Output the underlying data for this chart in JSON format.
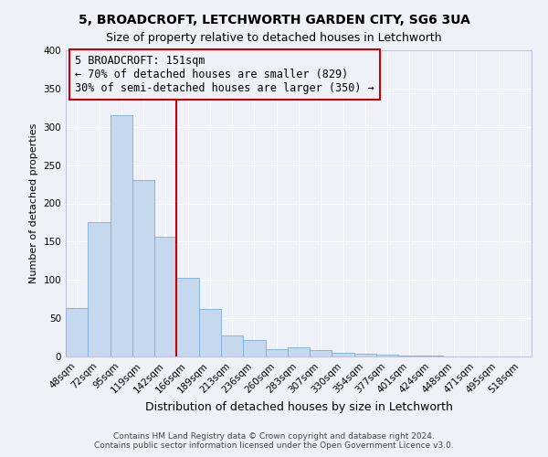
{
  "title": "5, BROADCROFT, LETCHWORTH GARDEN CITY, SG6 3UA",
  "subtitle": "Size of property relative to detached houses in Letchworth",
  "xlabel": "Distribution of detached houses by size in Letchworth",
  "ylabel": "Number of detached properties",
  "footer_line1": "Contains HM Land Registry data © Crown copyright and database right 2024.",
  "footer_line2": "Contains public sector information licensed under the Open Government Licence v3.0.",
  "bin_labels": [
    "48sqm",
    "72sqm",
    "95sqm",
    "119sqm",
    "142sqm",
    "166sqm",
    "189sqm",
    "213sqm",
    "236sqm",
    "260sqm",
    "283sqm",
    "307sqm",
    "330sqm",
    "354sqm",
    "377sqm",
    "401sqm",
    "424sqm",
    "448sqm",
    "471sqm",
    "495sqm",
    "518sqm"
  ],
  "bar_heights": [
    63,
    175,
    315,
    230,
    157,
    103,
    62,
    27,
    22,
    9,
    12,
    8,
    5,
    3,
    2,
    1,
    1,
    0.5,
    0.5,
    0.5,
    0.5
  ],
  "bar_color": "#c5d8ed",
  "bar_edge_color": "#7bafd4",
  "vline_x": 4.5,
  "vline_color": "#cc0000",
  "annotation_line1": "5 BROADCROFT: 151sqm",
  "annotation_line2": "← 70% of detached houses are smaller (829)",
  "annotation_line3": "30% of semi-detached houses are larger (350) →",
  "annotation_box_color": "#cc0000",
  "ylim": [
    0,
    400
  ],
  "yticks": [
    0,
    50,
    100,
    150,
    200,
    250,
    300,
    350,
    400
  ],
  "background_color": "#eef2f8",
  "grid_color": "#ffffff",
  "title_fontsize": 10,
  "subtitle_fontsize": 9,
  "xlabel_fontsize": 9,
  "ylabel_fontsize": 8,
  "tick_fontsize": 7.5,
  "annotation_fontsize": 8.5,
  "footer_fontsize": 6.5
}
